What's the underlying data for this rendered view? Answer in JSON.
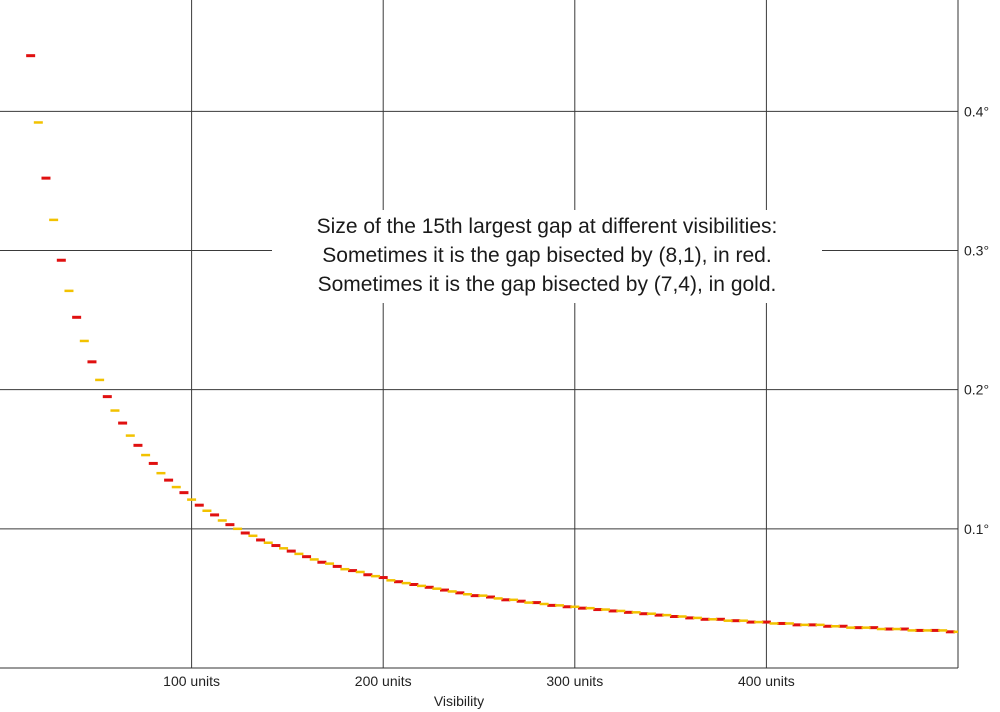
{
  "chart_data": {
    "type": "scatter",
    "title": "",
    "xlabel": "Visibility",
    "ylabel": "",
    "xlim": [
      0,
      500
    ],
    "ylim": [
      0,
      0.48
    ],
    "x_ticks": [
      100,
      200,
      300,
      400
    ],
    "x_tick_labels": [
      "100 units",
      "200 units",
      "300 units",
      "400 units"
    ],
    "y_ticks": [
      0.1,
      0.2,
      0.3,
      0.4
    ],
    "y_tick_labels": [
      "0.1°",
      "0.2°",
      "0.3°",
      "0.4°"
    ],
    "grid": true,
    "y_axis_position": "right",
    "marker": "short horizontal dash",
    "annotation": [
      "Size of the 15th largest gap at different visibilities:",
      "Sometimes it is the gap bisected by (8,1), in red.",
      "Sometimes it is the gap bisected by (7,4), in gold."
    ],
    "series": [
      {
        "color": "#e01010",
        "points": [
          [
            16,
            0.44
          ],
          [
            24,
            0.352
          ],
          [
            32,
            0.293
          ],
          [
            40,
            0.252
          ],
          [
            48,
            0.22
          ],
          [
            56,
            0.195
          ],
          [
            64,
            0.176
          ],
          [
            72,
            0.16
          ],
          [
            80,
            0.147
          ],
          [
            88,
            0.135
          ],
          [
            96,
            0.126
          ],
          [
            104,
            0.117
          ],
          [
            112,
            0.11
          ],
          [
            120,
            0.103
          ],
          [
            128,
            0.097
          ],
          [
            136,
            0.092
          ],
          [
            144,
            0.088
          ],
          [
            152,
            0.084
          ],
          [
            160,
            0.08
          ],
          [
            168,
            0.076
          ],
          [
            176,
            0.073
          ],
          [
            184,
            0.07
          ],
          [
            192,
            0.067
          ],
          [
            200,
            0.065
          ],
          [
            208,
            0.062
          ],
          [
            216,
            0.06
          ],
          [
            224,
            0.058
          ],
          [
            232,
            0.056
          ],
          [
            240,
            0.054
          ],
          [
            248,
            0.052
          ],
          [
            256,
            0.051
          ],
          [
            264,
            0.049
          ],
          [
            272,
            0.048
          ],
          [
            280,
            0.047
          ],
          [
            288,
            0.045
          ],
          [
            296,
            0.044
          ],
          [
            304,
            0.043
          ],
          [
            312,
            0.042
          ],
          [
            320,
            0.041
          ],
          [
            328,
            0.04
          ],
          [
            336,
            0.039
          ],
          [
            344,
            0.038
          ],
          [
            352,
            0.037
          ],
          [
            360,
            0.036
          ],
          [
            368,
            0.035
          ],
          [
            376,
            0.035
          ],
          [
            384,
            0.034
          ],
          [
            392,
            0.033
          ],
          [
            400,
            0.033
          ],
          [
            408,
            0.032
          ],
          [
            416,
            0.031
          ],
          [
            424,
            0.031
          ],
          [
            432,
            0.03
          ],
          [
            440,
            0.03
          ],
          [
            448,
            0.029
          ],
          [
            456,
            0.029
          ],
          [
            464,
            0.028
          ],
          [
            472,
            0.028
          ],
          [
            480,
            0.027
          ],
          [
            488,
            0.027
          ],
          [
            496,
            0.026
          ]
        ]
      },
      {
        "color": "#f2c200",
        "points": [
          [
            20,
            0.392
          ],
          [
            28,
            0.322
          ],
          [
            36,
            0.271
          ],
          [
            44,
            0.235
          ],
          [
            52,
            0.207
          ],
          [
            60,
            0.185
          ],
          [
            68,
            0.167
          ],
          [
            76,
            0.153
          ],
          [
            84,
            0.14
          ],
          [
            92,
            0.13
          ],
          [
            100,
            0.121
          ],
          [
            108,
            0.113
          ],
          [
            116,
            0.106
          ],
          [
            124,
            0.1
          ],
          [
            132,
            0.095
          ],
          [
            140,
            0.09
          ],
          [
            148,
            0.086
          ],
          [
            156,
            0.082
          ],
          [
            164,
            0.078
          ],
          [
            172,
            0.075
          ],
          [
            180,
            0.071
          ],
          [
            188,
            0.069
          ],
          [
            196,
            0.066
          ],
          [
            204,
            0.063
          ],
          [
            212,
            0.061
          ],
          [
            220,
            0.059
          ],
          [
            228,
            0.057
          ],
          [
            236,
            0.055
          ],
          [
            244,
            0.053
          ],
          [
            252,
            0.052
          ],
          [
            260,
            0.05
          ],
          [
            268,
            0.049
          ],
          [
            276,
            0.047
          ],
          [
            284,
            0.046
          ],
          [
            292,
            0.045
          ],
          [
            300,
            0.044
          ],
          [
            308,
            0.043
          ],
          [
            316,
            0.042
          ],
          [
            324,
            0.041
          ],
          [
            332,
            0.04
          ],
          [
            340,
            0.039
          ],
          [
            348,
            0.038
          ],
          [
            356,
            0.037
          ],
          [
            364,
            0.036
          ],
          [
            372,
            0.035
          ],
          [
            380,
            0.034
          ],
          [
            388,
            0.034
          ],
          [
            396,
            0.033
          ],
          [
            404,
            0.032
          ],
          [
            412,
            0.032
          ],
          [
            420,
            0.031
          ],
          [
            428,
            0.031
          ],
          [
            436,
            0.03
          ],
          [
            444,
            0.029
          ],
          [
            452,
            0.029
          ],
          [
            460,
            0.028
          ],
          [
            468,
            0.028
          ],
          [
            476,
            0.027
          ],
          [
            484,
            0.027
          ],
          [
            492,
            0.027
          ],
          [
            500,
            0.026
          ]
        ]
      }
    ]
  }
}
